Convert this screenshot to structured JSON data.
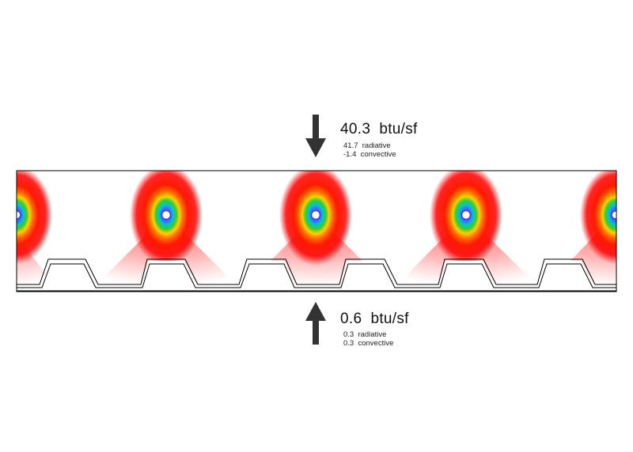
{
  "top_flux": {
    "total": "40.3  btu/sf",
    "radiative": "41.7  radiative",
    "convective": "-1.4  convective",
    "direction": "down-arrow-icon"
  },
  "bottom_flux": {
    "total": "0.6  btu/sf",
    "radiative": "0.3  radiative",
    "convective": "0.3  convective",
    "direction": "up-arrow-icon"
  },
  "colors": {
    "arrow": "#333333",
    "outline": "#000000",
    "heat_ramp": [
      "#ff0000",
      "#ff6a00",
      "#ffd000",
      "#33cc33",
      "#00c8c8",
      "#3a6cff",
      "#9b30ff",
      "#ffffff"
    ]
  }
}
